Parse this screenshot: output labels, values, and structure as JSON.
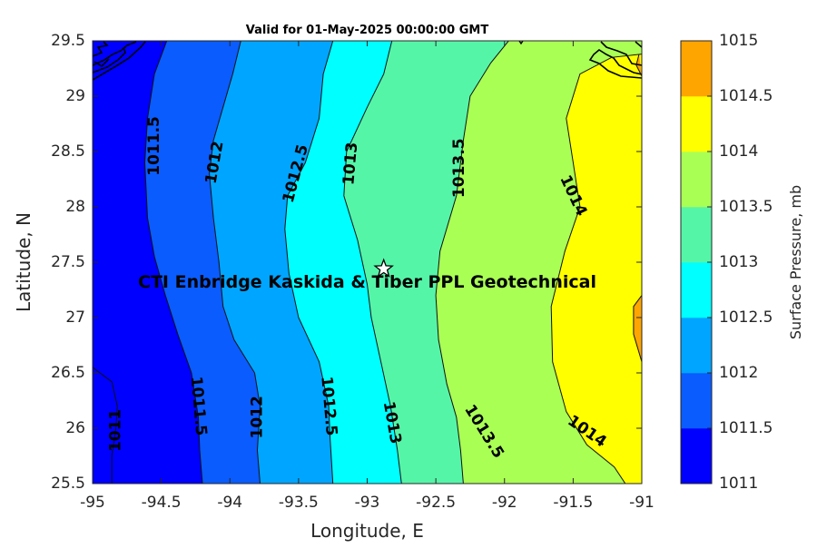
{
  "chart_data": {
    "type": "contour",
    "title": "Valid for 01-May-2025 00:00:00 GMT",
    "xlabel": "Longitude, E",
    "ylabel": "Latitude, N",
    "xlim": [
      -95,
      -91
    ],
    "ylim": [
      25.5,
      29.5
    ],
    "xticks": [
      "-95",
      "-94.5",
      "-94",
      "-93.5",
      "-93",
      "-92.5",
      "-92",
      "-91.5",
      "-91"
    ],
    "yticks": [
      "25.5",
      "26",
      "26.5",
      "27",
      "27.5",
      "28",
      "28.5",
      "29",
      "29.5"
    ],
    "colorbar": {
      "label": "Surface Pressure, mb",
      "levels": [
        1011,
        1011.5,
        1012,
        1012.5,
        1013,
        1013.5,
        1014,
        1014.5,
        1015
      ],
      "tick_labels": [
        "1011",
        "1011.5",
        "1012",
        "1012.5",
        "1013",
        "1013.5",
        "1014",
        "1014.5",
        "1015"
      ],
      "colors": [
        "#0000FF",
        "#0A5CFF",
        "#00A5FF",
        "#00FFFF",
        "#55F5A8",
        "#AAFF55",
        "#FFFF00",
        "#FFA500",
        "#FF5A00"
      ]
    },
    "contours": [
      {
        "level": 1011,
        "points": [
          [
            -94.86,
            25.5
          ],
          [
            -94.86,
            25.75
          ],
          [
            -94.83,
            26.0
          ],
          [
            -94.82,
            26.2
          ],
          [
            -94.86,
            26.42
          ],
          [
            -95.0,
            26.55
          ]
        ]
      },
      {
        "level": 1011.5,
        "points": [
          [
            -94.2,
            25.5
          ],
          [
            -94.22,
            25.8
          ],
          [
            -94.23,
            26.1
          ],
          [
            -94.28,
            26.5
          ],
          [
            -94.38,
            26.85
          ],
          [
            -94.47,
            27.2
          ],
          [
            -94.55,
            27.55
          ],
          [
            -94.6,
            27.9
          ],
          [
            -94.62,
            28.4
          ],
          [
            -94.6,
            28.8
          ],
          [
            -94.55,
            29.2
          ],
          [
            -94.46,
            29.5
          ]
        ]
      },
      {
        "level": 1012,
        "points": [
          [
            -93.78,
            25.5
          ],
          [
            -93.8,
            25.8
          ],
          [
            -93.78,
            26.2
          ],
          [
            -93.82,
            26.5
          ],
          [
            -93.97,
            26.8
          ],
          [
            -94.05,
            27.1
          ],
          [
            -94.08,
            27.5
          ],
          [
            -94.12,
            27.9
          ],
          [
            -94.15,
            28.3
          ],
          [
            -94.12,
            28.6
          ],
          [
            -94.05,
            28.9
          ],
          [
            -93.98,
            29.2
          ],
          [
            -93.92,
            29.5
          ]
        ]
      },
      {
        "level": 1012.5,
        "points": [
          [
            -93.25,
            25.5
          ],
          [
            -93.27,
            25.9
          ],
          [
            -93.28,
            26.2
          ],
          [
            -93.35,
            26.6
          ],
          [
            -93.5,
            27.0
          ],
          [
            -93.57,
            27.4
          ],
          [
            -93.6,
            27.8
          ],
          [
            -93.58,
            28.1
          ],
          [
            -93.45,
            28.4
          ],
          [
            -93.35,
            28.8
          ],
          [
            -93.32,
            29.2
          ],
          [
            -93.25,
            29.5
          ]
        ]
      },
      {
        "level": 1013,
        "points": [
          [
            -92.75,
            25.5
          ],
          [
            -92.78,
            25.8
          ],
          [
            -92.83,
            26.2
          ],
          [
            -92.9,
            26.6
          ],
          [
            -92.97,
            27.0
          ],
          [
            -93.0,
            27.3
          ],
          [
            -93.07,
            27.7
          ],
          [
            -93.17,
            28.1
          ],
          [
            -93.15,
            28.5
          ],
          [
            -93.0,
            28.9
          ],
          [
            -92.88,
            29.2
          ],
          [
            -92.82,
            29.5
          ]
        ]
      },
      {
        "level": 1013.5,
        "points": [
          [
            -92.3,
            25.5
          ],
          [
            -92.32,
            25.8
          ],
          [
            -92.35,
            26.1
          ],
          [
            -92.42,
            26.4
          ],
          [
            -92.48,
            26.8
          ],
          [
            -92.5,
            27.2
          ],
          [
            -92.47,
            27.6
          ],
          [
            -92.35,
            28.1
          ],
          [
            -92.3,
            28.6
          ],
          [
            -92.25,
            29.0
          ],
          [
            -92.1,
            29.3
          ],
          [
            -91.97,
            29.5
          ]
        ]
      },
      {
        "level": 1014,
        "points": [
          [
            -91.12,
            25.5
          ],
          [
            -91.2,
            25.65
          ],
          [
            -91.4,
            25.85
          ],
          [
            -91.55,
            26.15
          ],
          [
            -91.65,
            26.6
          ],
          [
            -91.66,
            27.1
          ],
          [
            -91.56,
            27.6
          ],
          [
            -91.45,
            28.0
          ],
          [
            -91.5,
            28.4
          ],
          [
            -91.55,
            28.8
          ],
          [
            -91.45,
            29.2
          ],
          [
            -91.22,
            29.35
          ],
          [
            -91.0,
            29.38
          ]
        ]
      },
      {
        "level": 1014.5,
        "points": [
          [
            -91.0,
            26.6
          ],
          [
            -91.06,
            26.85
          ],
          [
            -91.06,
            27.1
          ],
          [
            -91.0,
            27.2
          ]
        ]
      },
      {
        "level": 1014.5,
        "points": [
          [
            -91.0,
            29.18
          ],
          [
            -91.04,
            29.28
          ],
          [
            -91.02,
            29.38
          ]
        ]
      }
    ],
    "contour_labels": [
      {
        "text": "1011.5",
        "lon": -94.55,
        "lat": 28.55,
        "angle": -90
      },
      {
        "text": "1012",
        "lon": -94.11,
        "lat": 28.4,
        "angle": -80
      },
      {
        "text": "1012.5",
        "lon": -93.52,
        "lat": 28.3,
        "angle": -75
      },
      {
        "text": "1013",
        "lon": -93.12,
        "lat": 28.39,
        "angle": -85
      },
      {
        "text": "1013.5",
        "lon": -92.33,
        "lat": 28.35,
        "angle": -90
      },
      {
        "text": "1014",
        "lon": -91.5,
        "lat": 28.1,
        "angle": 65
      },
      {
        "text": "1011",
        "lon": -94.83,
        "lat": 25.98,
        "angle": -90
      },
      {
        "text": "1011.5",
        "lon": -94.23,
        "lat": 26.2,
        "angle": 85
      },
      {
        "text": "1012",
        "lon": -93.8,
        "lat": 26.1,
        "angle": -90
      },
      {
        "text": "1012.5",
        "lon": -93.28,
        "lat": 26.2,
        "angle": 85
      },
      {
        "text": "1013",
        "lon": -92.82,
        "lat": 26.05,
        "angle": 80
      },
      {
        "text": "1013.5",
        "lon": -92.15,
        "lat": 25.97,
        "angle": 58
      },
      {
        "text": "1014",
        "lon": -91.4,
        "lat": 25.97,
        "angle": 35
      }
    ],
    "annotations": [
      {
        "text": "CTI Enbridge  Kaskida & Tiber PPL Geotechnical",
        "lon": -93.0,
        "lat": 27.32
      }
    ],
    "marker": {
      "type": "star",
      "lon": -92.88,
      "lat": 27.44
    }
  }
}
